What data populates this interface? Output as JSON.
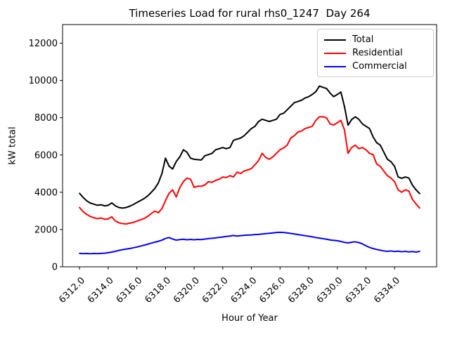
{
  "chart_data": {
    "type": "line",
    "title": "Timeseries Load for rural rhs0_1247  Day 264",
    "xlabel": "Hour of Year",
    "ylabel": "kW total",
    "xlim": [
      6310.8125,
      6336.9375
    ],
    "ylim": [
      0,
      13000
    ],
    "xticks": [
      6312,
      6314,
      6316,
      6318,
      6320,
      6322,
      6324,
      6326,
      6328,
      6330,
      6332,
      6334
    ],
    "xtick_labels": [
      "6312.0",
      "6314.0",
      "6316.0",
      "6318.0",
      "6320.0",
      "6322.0",
      "6324.0",
      "6326.0",
      "6328.0",
      "6330.0",
      "6332.0",
      "6334.0"
    ],
    "yticks": [
      0,
      2000,
      4000,
      6000,
      8000,
      10000,
      12000
    ],
    "ytick_labels": [
      "0",
      "2000",
      "4000",
      "6000",
      "8000",
      "10000",
      "12000"
    ],
    "grid": false,
    "legend_position": "upper right",
    "x_start": 6312.0,
    "x_step": 0.25,
    "axis_color": "#000000",
    "series": [
      {
        "name": "Total",
        "color": "#000000",
        "values": [
          3940,
          3720,
          3540,
          3420,
          3360,
          3300,
          3330,
          3270,
          3300,
          3430,
          3270,
          3180,
          3150,
          3180,
          3250,
          3340,
          3450,
          3550,
          3660,
          3800,
          3990,
          4200,
          4500,
          5000,
          5830,
          5400,
          5250,
          5650,
          5900,
          6280,
          6150,
          5830,
          5770,
          5750,
          5730,
          5960,
          6020,
          6090,
          6280,
          6340,
          6400,
          6340,
          6400,
          6790,
          6850,
          6910,
          7040,
          7230,
          7420,
          7540,
          7800,
          7920,
          7860,
          7800,
          7860,
          7920,
          8180,
          8240,
          8430,
          8620,
          8810,
          8870,
          8940,
          9060,
          9130,
          9250,
          9400,
          9700,
          9630,
          9570,
          9320,
          9130,
          9250,
          9380,
          8600,
          7600,
          7900,
          8050,
          7920,
          7670,
          7540,
          7420,
          6970,
          6660,
          6530,
          6150,
          5770,
          5640,
          5390,
          4820,
          4750,
          4820,
          4760,
          4380,
          4130,
          3930
        ]
      },
      {
        "name": "Residential",
        "color": "#ff0000",
        "values": [
          3180,
          2960,
          2810,
          2700,
          2630,
          2580,
          2620,
          2550,
          2570,
          2680,
          2460,
          2360,
          2320,
          2300,
          2340,
          2380,
          2450,
          2520,
          2590,
          2700,
          2850,
          2990,
          2900,
          3120,
          3550,
          3950,
          4130,
          3750,
          4250,
          4570,
          4760,
          4700,
          4260,
          4330,
          4320,
          4390,
          4570,
          4530,
          4640,
          4700,
          4820,
          4790,
          4890,
          4820,
          5080,
          5010,
          5140,
          5200,
          5270,
          5480,
          5700,
          6090,
          5870,
          5770,
          5900,
          6090,
          6280,
          6380,
          6530,
          6910,
          7040,
          7230,
          7290,
          7420,
          7480,
          7540,
          7860,
          8050,
          8050,
          7990,
          7670,
          7610,
          7730,
          7860,
          7350,
          6090,
          6400,
          6530,
          6340,
          6400,
          6280,
          6090,
          6020,
          5520,
          5390,
          5140,
          4890,
          4760,
          4570,
          4130,
          4000,
          4130,
          4060,
          3620,
          3370,
          3150
        ]
      },
      {
        "name": "Commercial",
        "color": "#0000ff",
        "values": [
          720,
          705,
          715,
          700,
          715,
          705,
          720,
          730,
          760,
          790,
          830,
          880,
          920,
          950,
          980,
          1020,
          1060,
          1110,
          1160,
          1210,
          1270,
          1320,
          1370,
          1430,
          1520,
          1570,
          1490,
          1430,
          1460,
          1480,
          1450,
          1470,
          1450,
          1470,
          1460,
          1490,
          1510,
          1530,
          1550,
          1580,
          1600,
          1630,
          1650,
          1680,
          1650,
          1670,
          1690,
          1700,
          1710,
          1730,
          1740,
          1760,
          1780,
          1800,
          1820,
          1840,
          1850,
          1840,
          1820,
          1790,
          1760,
          1730,
          1700,
          1670,
          1640,
          1610,
          1570,
          1540,
          1510,
          1480,
          1440,
          1420,
          1400,
          1360,
          1310,
          1280,
          1320,
          1340,
          1300,
          1230,
          1130,
          1040,
          980,
          930,
          890,
          850,
          830,
          850,
          820,
          840,
          810,
          830,
          800,
          820,
          790,
          830
        ]
      }
    ]
  }
}
